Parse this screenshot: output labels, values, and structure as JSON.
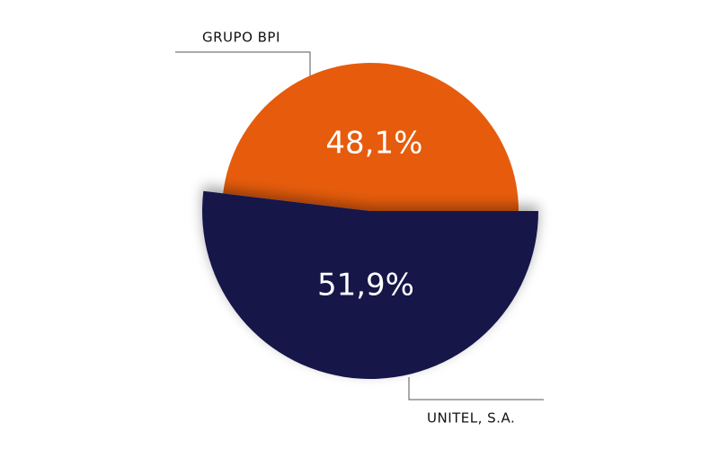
{
  "chart_data": {
    "type": "pie",
    "categories": [
      "GRUPO BPI",
      "UNITEL, S.A."
    ],
    "values": [
      48.1,
      51.9
    ],
    "value_labels": [
      "48,1%",
      "51,9%"
    ],
    "colors": [
      "#e65c0c",
      "#161848"
    ]
  }
}
